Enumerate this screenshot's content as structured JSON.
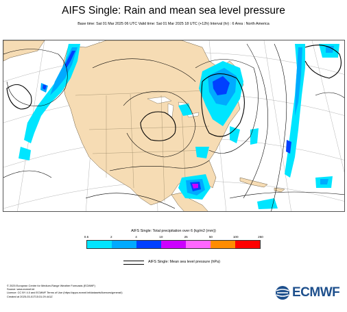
{
  "header": {
    "title": "AIFS Single: Rain and mean sea level pressure",
    "subtitle": "Base time: Sat 01 Mar 2025 06 UTC Valid time: Sat 01 Mar 2025 18 UTC (+12h) Interval (hr) : 6 Area : North America"
  },
  "map": {
    "ocean_color": "#ffffff",
    "land_color": "#f6dcb4"
  },
  "colorbar": {
    "title": "AIFS Single: Total precipitation over 6 (kg/m2 (mm))",
    "ticks": [
      "0.5",
      "2",
      "4",
      "10",
      "25",
      "50",
      "100",
      "250"
    ],
    "colors": [
      "#00e5ff",
      "#00aaff",
      "#0040ff",
      "#cc00ff",
      "#ff66ff",
      "#ff8c00",
      "#ff0000"
    ]
  },
  "mslp_legend": {
    "label": "AIFS Single: Mean sea level pressure (hPa)"
  },
  "footer": {
    "lines": [
      "© 2025 European Centre for Medium-Range Weather Forecasts (ECMWF)",
      "Source: www.ecmwf.int",
      "Licence: CC BY 4.0 and ECMWF Terms of Use (https://apps.ecmwf.int/datasets/licences/general/)",
      "Created at 2025-03-01T15:31:29.441Z"
    ]
  },
  "logo": {
    "text": "ECMWF",
    "color": "#1d4f8c"
  }
}
